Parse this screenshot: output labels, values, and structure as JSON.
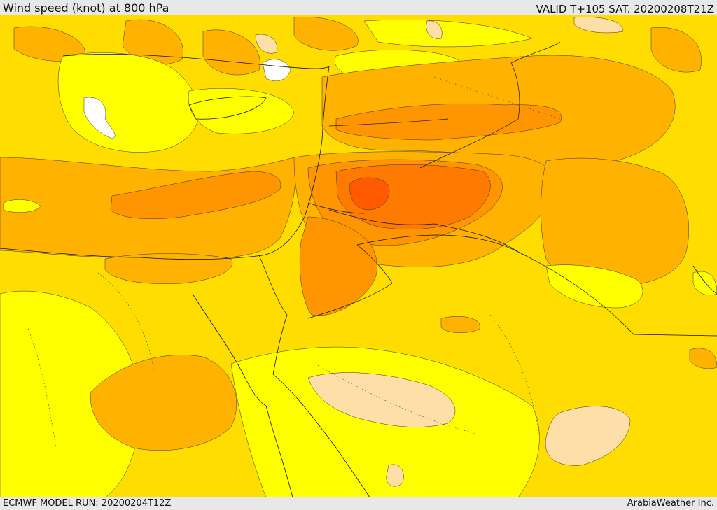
{
  "header": {
    "title": "Wind speed (knot) at 800 hPa",
    "valid": "VALID T+105 SAT. 20200208T21Z"
  },
  "footer": {
    "model_run": "ECMWF MODEL RUN: 20200204T12Z",
    "credit": "ArabiaWeather Inc."
  },
  "palette": {
    "calm": "#ffffff",
    "light": "#ffdfa8",
    "low": "#ffff00",
    "moderate": "#ffdd00",
    "fresh": "#ffb300",
    "strong": "#ff9500",
    "very_strong": "#ff7a00",
    "gale": "#ff5a00"
  },
  "map": {
    "field": "wind speed",
    "unit": "knot",
    "level": "800 hPa"
  }
}
